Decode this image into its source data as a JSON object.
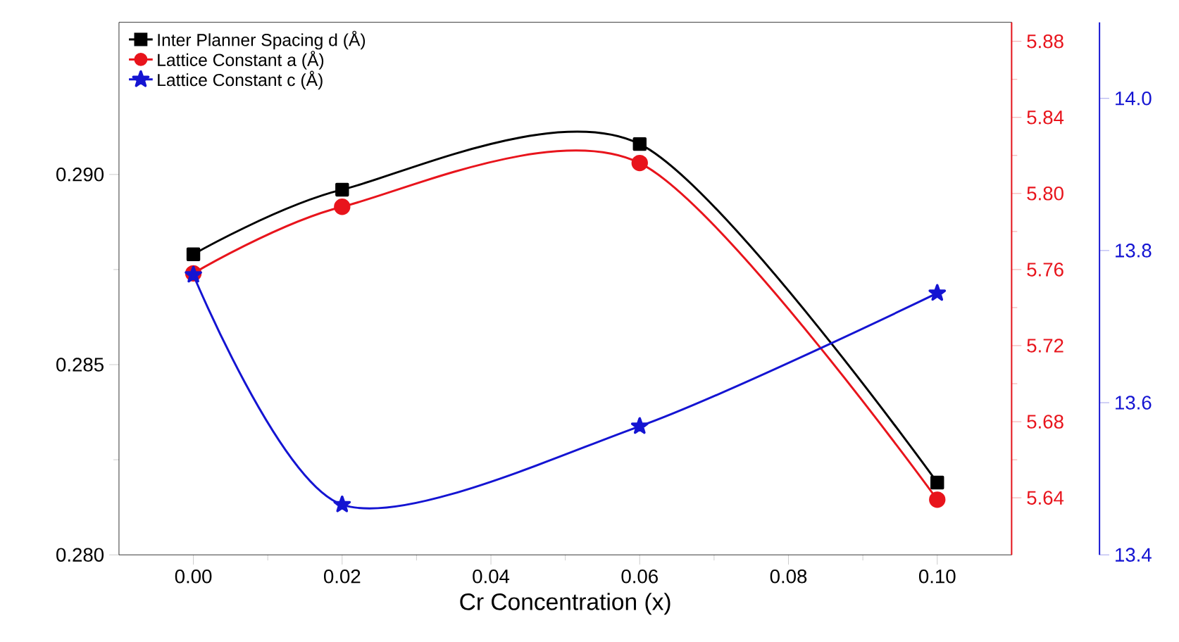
{
  "chart_data": {
    "type": "line",
    "xlabel": "Cr Concentration (x)",
    "x": [
      0.0,
      0.02,
      0.06,
      0.1
    ],
    "xlim": [
      -0.01,
      0.11
    ],
    "xticks": [
      {
        "value": 0.0,
        "label": "0.00"
      },
      {
        "value": 0.02,
        "label": "0.02"
      },
      {
        "value": 0.04,
        "label": "0.04"
      },
      {
        "value": 0.06,
        "label": "0.06"
      },
      {
        "value": 0.08,
        "label": "0.08"
      },
      {
        "value": 0.1,
        "label": "0.10"
      }
    ],
    "ylim": [
      0.28,
      0.294
    ],
    "yticks": [
      {
        "value": 0.28,
        "label": "0.280"
      },
      {
        "value": 0.285,
        "label": "0.285"
      },
      {
        "value": 0.29,
        "label": "0.290"
      }
    ],
    "y2lim": [
      5.61,
      5.89
    ],
    "y2ticks": [
      {
        "value": 5.64,
        "label": "5.64"
      },
      {
        "value": 5.68,
        "label": "5.68"
      },
      {
        "value": 5.72,
        "label": "5.72"
      },
      {
        "value": 5.76,
        "label": "5.76"
      },
      {
        "value": 5.8,
        "label": "5.80"
      },
      {
        "value": 5.84,
        "label": "5.84"
      },
      {
        "value": 5.88,
        "label": "5.88"
      }
    ],
    "y3lim": [
      13.4,
      14.1
    ],
    "y3ticks": [
      {
        "value": 13.4,
        "label": "13.4"
      },
      {
        "value": 13.6,
        "label": "13.6"
      },
      {
        "value": 13.8,
        "label": "13.8"
      },
      {
        "value": 14.0,
        "label": "14.0"
      }
    ],
    "legend": "top left",
    "line_style": "solid",
    "series": [
      {
        "name": "Inter Planner Spacing d (Å)",
        "color": "#000000",
        "marker": "square",
        "values": [
          0.2879,
          0.2896,
          0.2908,
          0.2819
        ]
      },
      {
        "name": "Lattice Constant  a (Å)",
        "color": "#e8141c",
        "marker": "circle",
        "axis": "y2",
        "values": [
          5.758,
          5.793,
          5.816,
          5.639
        ]
      },
      {
        "name": "Lattice Constant  c (Å)",
        "color": "#1414d2",
        "marker": "star",
        "axis": "y3",
        "values": [
          13.768,
          13.466,
          13.569,
          13.744
        ]
      }
    ]
  }
}
